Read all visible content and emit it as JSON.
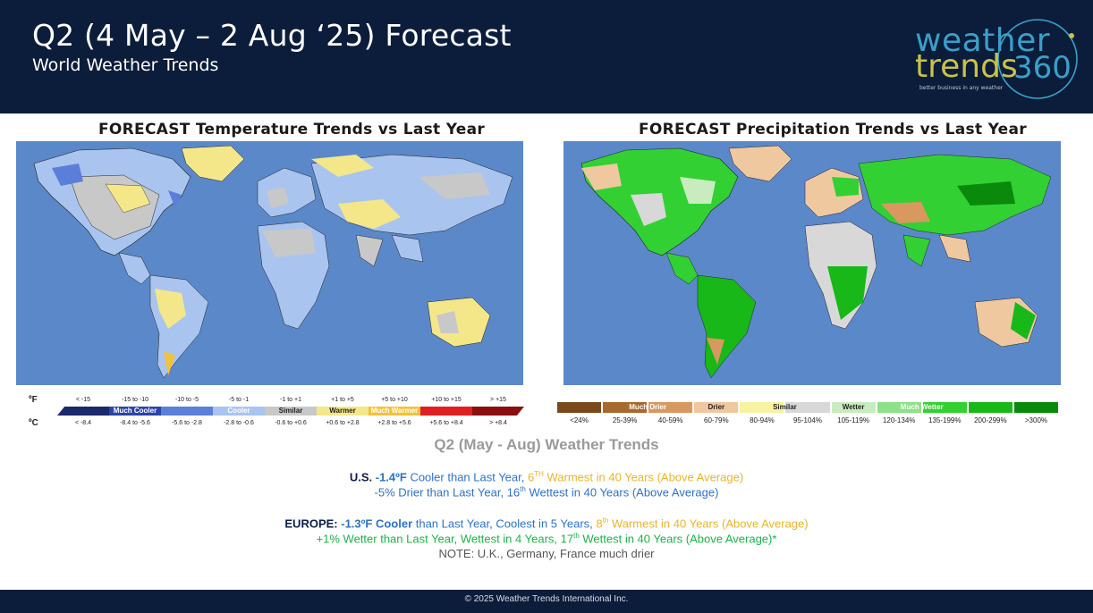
{
  "header": {
    "title": "Q2 (4 May – 2 Aug ‘25) Forecast",
    "subtitle": "World Weather Trends",
    "logo_line1": "weather",
    "logo_line2": "trends",
    "logo_360": "360",
    "logo_tagline": "better business in any weather"
  },
  "temp_panel": {
    "title": "FORECAST Temperature Trends vs Last Year",
    "legend": {
      "unit_f": "ºF",
      "unit_c": "ºC",
      "f_ranges": [
        "< -15",
        "-15 to -10",
        "-10 to -5",
        "-5 to -1",
        "-1 to +1",
        "+1 to +5",
        "+5 to +10",
        "+10 to +15",
        "> +15"
      ],
      "c_ranges": [
        "< -8.4",
        "-8.4 to -5.6",
        "-5.6 to -2.8",
        "-2.8 to -0.6",
        "-0.6 to +0.6",
        "+0.6 to +2.8",
        "+2.8 to +5.6",
        "+5.6 to +8.4",
        "> +8.4"
      ],
      "categories": [
        "Much Cooler",
        "Cooler",
        "Similar",
        "Warmer",
        "Much Warmer"
      ],
      "colors": [
        "#1a2a6c",
        "#2c44a8",
        "#5b7fd8",
        "#a9c4ee",
        "#c8c8c8",
        "#f3e78a",
        "#f2c23a",
        "#e02020",
        "#8a1010"
      ]
    }
  },
  "precip_panel": {
    "title": "FORECAST Precipitation Trends vs Last Year",
    "legend": {
      "ranges": [
        "<24%",
        "25-39%",
        "40-59%",
        "60-79%",
        "80-94%",
        "95-104%",
        "105-119%",
        "120-134%",
        "135-199%",
        "200-299%",
        ">300%"
      ],
      "categories": [
        "Much Drier",
        "Drier",
        "Similar",
        "Wetter",
        "Much Wetter"
      ],
      "colors": [
        "#7a4a1e",
        "#a86a2c",
        "#d89860",
        "#f0c8a0",
        "#f7f3a0",
        "#d8d8d8",
        "#c8ecc0",
        "#8ee08a",
        "#33d033",
        "#18b818",
        "#0a8a0a"
      ]
    }
  },
  "summary": {
    "title": "Q2 (May - Aug) Weather Trends",
    "us_label": "U.S.",
    "us_value": "-1.4ºF",
    "us_text1": " Cooler than Last Year, ",
    "us_rank1": "6",
    "us_rank1_sup": "TH",
    "us_rank1_text": " Warmest in 40 Years (Above Average)",
    "us_line2_pre": "-5% Drier than Last Year, 16",
    "us_line2_sup": "th",
    "us_line2_post": " Wettest in 40 Years (Above Average)",
    "eu_label": "EUROPE:",
    "eu_value": "-1.3ºF Cooler",
    "eu_text1": " than Last Year, Coolest in 5 Years, ",
    "eu_rank1": "8",
    "eu_rank1_sup": "th",
    "eu_rank1_text": " Warmest in 40 Years (Above Average)",
    "eu_line2_pre": "+1% Wetter than Last Year, Wettest in 4 Years, 17",
    "eu_line2_sup": "th",
    "eu_line2_post": " Wettest in 40 Years (Above Average)*",
    "note": "NOTE:  U.K., Germany, France much drier"
  },
  "footer": {
    "copyright": "© 2025 Weather Trends International Inc."
  }
}
